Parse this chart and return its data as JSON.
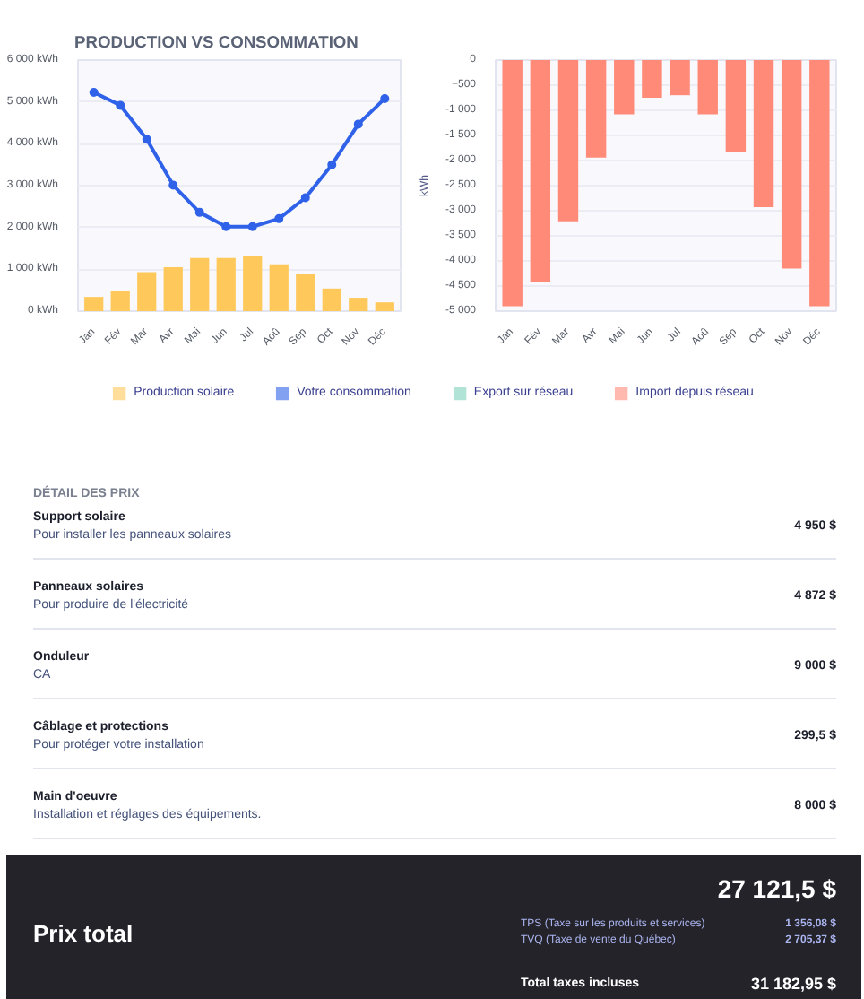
{
  "chart_data": [
    {
      "type": "bar",
      "title": "PRODUCTION VS CONSOMMATION",
      "categories": [
        "Jan",
        "Fév",
        "Mar",
        "Avr",
        "Mai",
        "Jun",
        "Jul",
        "Aoû",
        "Sep",
        "Oct",
        "Nov",
        "Déc"
      ],
      "series": [
        {
          "name": "Production solaire",
          "type": "bar",
          "color": "#ffc85a",
          "values": [
            340,
            490,
            930,
            1050,
            1270,
            1270,
            1310,
            1120,
            880,
            540,
            320,
            210
          ]
        },
        {
          "name": "Votre consommation",
          "type": "line",
          "color": "#2f62e8",
          "values": [
            5230,
            4920,
            4110,
            3010,
            2360,
            2020,
            2020,
            2210,
            2710,
            3500,
            4470,
            5080
          ]
        }
      ],
      "ylim": [
        0,
        6000
      ],
      "yticks": [
        {
          "value": 0,
          "label": "0 kWh"
        },
        {
          "value": 1000,
          "label": "1 000 kWh"
        },
        {
          "value": 2000,
          "label": "2 000 kWh"
        },
        {
          "value": 3000,
          "label": "3 000 kWh"
        },
        {
          "value": 4000,
          "label": "4 000 kWh"
        },
        {
          "value": 5000,
          "label": "5 000 kWh"
        },
        {
          "value": 6000,
          "label": "6 000 kWh"
        }
      ],
      "grid": "y",
      "legend": "bottom",
      "marker": "circle",
      "line_style": "solid"
    },
    {
      "type": "bar",
      "categories": [
        "Jan",
        "Fév",
        "Mar",
        "Avr",
        "Mai",
        "Jun",
        "Jul",
        "Aoû",
        "Sep",
        "Oct",
        "Nov",
        "Déc"
      ],
      "series": [
        {
          "name": "Export sur réseau",
          "color": "#7fd1bd",
          "values": [
            null,
            null,
            null,
            null,
            null,
            null,
            null,
            null,
            null,
            null,
            null,
            null
          ]
        },
        {
          "name": "Import depuis réseau",
          "color": "#ff8a78",
          "values": [
            -4900,
            -4430,
            -3210,
            -1940,
            -1080,
            -750,
            -700,
            -1080,
            -1820,
            -2930,
            -4150,
            -4900
          ]
        }
      ],
      "ylabel": "kWh",
      "ylim": [
        -5000,
        0
      ],
      "yticks": [
        0,
        -500,
        {
          "value": -1000,
          "label": "-1 000"
        },
        {
          "value": -1500,
          "label": "-1 500"
        },
        {
          "value": -2000,
          "label": "-2 000"
        },
        {
          "value": -2500,
          "label": "-2 500"
        },
        {
          "value": -3000,
          "label": "-3 000"
        },
        {
          "value": -3500,
          "label": "-3 500"
        },
        {
          "value": -4000,
          "label": "-4 000"
        },
        {
          "value": -4500,
          "label": "-4 500"
        },
        {
          "value": -5000,
          "label": "-5 000"
        }
      ],
      "grid": "y",
      "legend": "bottom"
    },
    {
      "type": "other",
      "title": "DÉTAIL DES PRIX",
      "annotations": [
        "Support solaire",
        "Pour installer les panneaux solaires",
        "4 950 $",
        "Panneaux solaires",
        "Pour produire de l'électricité",
        "4 872 $",
        "Onduleur",
        "CA",
        "9 000 $",
        "Câblage et protections",
        "Pour protéger votre installation",
        "299,5 $",
        "Main d'oeuvre",
        "Installation et réglages des équipements.",
        "8 000 $",
        "Prix total",
        "27 121,5 $",
        "TPS (Taxe sur les produits et services)",
        "1 356,08 $",
        "TVQ (Taxe de vente du Québec)",
        "2 705,37 $",
        "Total taxes incluses",
        "31 182,95 $"
      ]
    }
  ]
}
